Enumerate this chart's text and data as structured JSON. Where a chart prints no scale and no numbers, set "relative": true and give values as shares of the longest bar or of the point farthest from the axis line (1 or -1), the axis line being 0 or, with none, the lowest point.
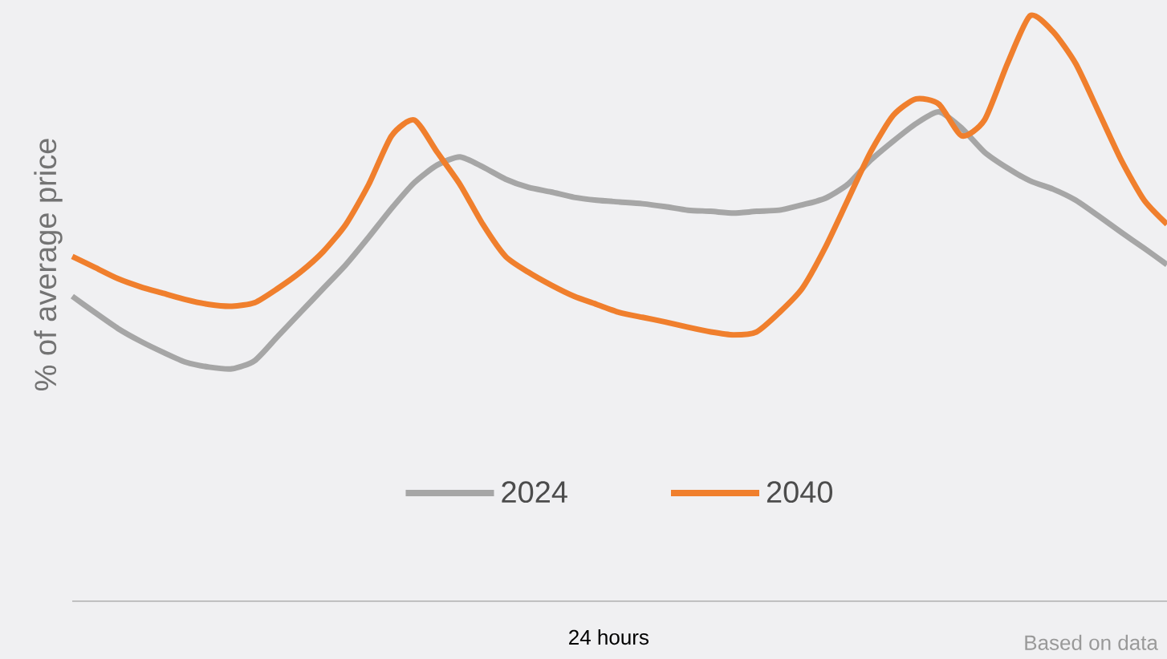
{
  "chart_data": {
    "type": "line",
    "relative": true,
    "ylabel": "% of average price",
    "xlabel": "24 hours",
    "legend": "bottom",
    "marker": "none",
    "line_style": "solid",
    "annotations": [
      "Based on data"
    ],
    "categories": [
      null,
      null,
      null,
      null,
      null,
      null,
      null,
      null,
      null,
      null,
      null,
      null,
      null,
      null,
      null,
      null,
      null,
      null,
      null,
      null,
      null,
      null,
      null,
      null,
      null,
      null,
      null,
      null,
      null,
      null,
      null,
      null,
      null,
      null,
      null,
      null,
      null,
      null,
      null,
      null,
      null,
      null,
      null,
      null,
      null,
      null,
      null,
      null,
      null
    ],
    "series": [
      {
        "name": "2024",
        "color": "#a6a6a6",
        "values": [
          0.521,
          0.493,
          0.466,
          0.444,
          0.425,
          0.408,
          0.4,
          0.397,
          0.411,
          0.452,
          0.493,
          0.534,
          0.575,
          0.622,
          0.671,
          0.715,
          0.745,
          0.759,
          0.742,
          0.721,
          0.707,
          0.699,
          0.69,
          0.685,
          0.682,
          0.679,
          0.674,
          0.668,
          0.666,
          0.663,
          0.666,
          0.668,
          0.677,
          0.688,
          0.712,
          0.753,
          0.786,
          0.816,
          0.836,
          0.808,
          0.767,
          0.74,
          0.718,
          0.704,
          0.685,
          0.658,
          0.63,
          0.603,
          0.575
        ]
      },
      {
        "name": "2040",
        "color": "#f07f2d",
        "values": [
          0.589,
          0.57,
          0.551,
          0.537,
          0.526,
          0.515,
          0.507,
          0.504,
          0.51,
          0.534,
          0.562,
          0.597,
          0.644,
          0.712,
          0.795,
          0.822,
          0.767,
          0.712,
          0.644,
          0.589,
          0.562,
          0.54,
          0.521,
          0.507,
          0.493,
          0.485,
          0.477,
          0.468,
          0.46,
          0.455,
          0.46,
          0.493,
          0.534,
          0.603,
          0.685,
          0.767,
          0.83,
          0.858,
          0.849,
          0.795,
          0.822,
          0.918,
          1.0,
          0.973,
          0.918,
          0.836,
          0.753,
          0.685,
          0.644
        ]
      }
    ]
  }
}
